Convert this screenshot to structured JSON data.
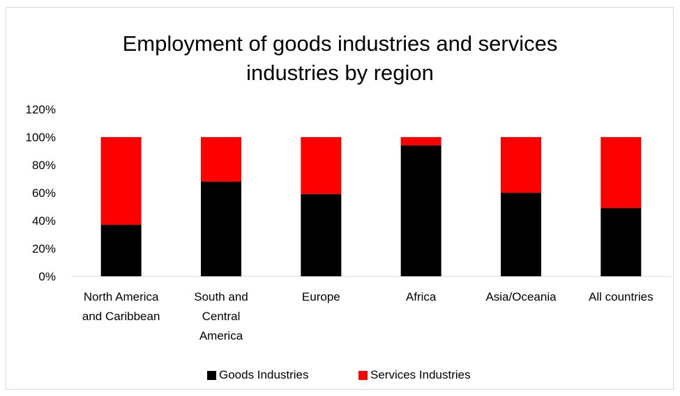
{
  "chart_data": {
    "type": "bar",
    "stacked": true,
    "title_lines": [
      "Employment of goods industries and services",
      "industries by region"
    ],
    "xlabel": "",
    "ylabel": "",
    "ylim": [
      0,
      1.2
    ],
    "y_ticks": [
      "0%",
      "20%",
      "40%",
      "60%",
      "80%",
      "100%",
      "120%"
    ],
    "y_tick_values": [
      0,
      0.2,
      0.4,
      0.6,
      0.8,
      1.0,
      1.2
    ],
    "grid": false,
    "legend_position": "bottom",
    "categories": [
      "North America and Caribbean",
      "South and Central America",
      "Europe",
      "Africa",
      "Asia/Oceania",
      "All countries"
    ],
    "category_label_lines": [
      [
        "North America",
        "and Caribbean"
      ],
      [
        "South and",
        "Central",
        "America"
      ],
      [
        "Europe"
      ],
      [
        "Africa"
      ],
      [
        "Asia/Oceania"
      ],
      [
        "All countries"
      ]
    ],
    "series": [
      {
        "name": "Goods Industries",
        "color": "#000000",
        "values": [
          0.37,
          0.68,
          0.59,
          0.94,
          0.6,
          0.49
        ]
      },
      {
        "name": "Services Industries",
        "color": "#ff0000",
        "values": [
          0.63,
          0.32,
          0.41,
          0.06,
          0.4,
          0.51
        ]
      }
    ]
  }
}
